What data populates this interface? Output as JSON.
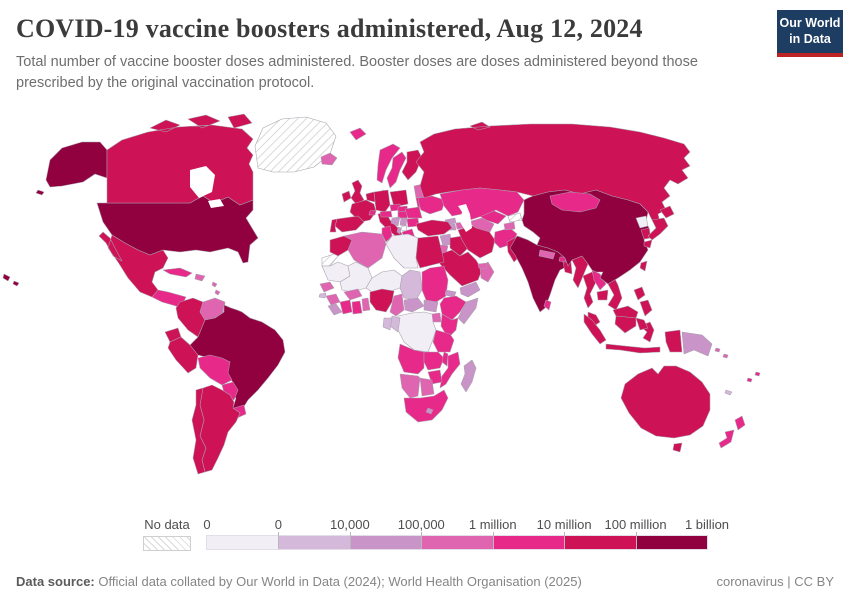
{
  "header": {
    "title": "COVID-19 vaccine boosters administered, Aug 12, 2024",
    "subtitle": "Total number of vaccine booster doses administered. Booster doses are doses administered beyond those prescribed by the original vaccination protocol.",
    "logo_line1": "Our World",
    "logo_line2": "in Data",
    "logo_bg": "#1d3d63",
    "logo_underline": "#bc2423"
  },
  "legend": {
    "nodata_label": "No data",
    "labels": [
      "0",
      "0",
      "10,000",
      "100,000",
      "1 million",
      "10 million",
      "100 million",
      "1 billion"
    ]
  },
  "footer": {
    "datasource_label": "Data source:",
    "datasource_text": " Official data collated by Our World in Data (2024); World Health Organisation (2025)",
    "license_text": "coronavirus | CC BY"
  },
  "chart_data": {
    "type": "choropleth",
    "title": "COVID-19 vaccine boosters administered",
    "date": "Aug 12, 2024",
    "metric": "Total vaccine booster doses administered",
    "legend_scale": "log-binned",
    "no_data_style": "diagonal-hatch",
    "bins": [
      {
        "range": "0",
        "color": "#f1eef6"
      },
      {
        "range": "0–10,000",
        "color": "#d4b9da"
      },
      {
        "range": "10,000–100,000",
        "color": "#c994c7"
      },
      {
        "range": "100,000–1 million",
        "color": "#df65b0"
      },
      {
        "range": "1 million–10 million",
        "color": "#e7298a"
      },
      {
        "range": "10 million–100 million",
        "color": "#ce1256"
      },
      {
        "range": "100 million–1 billion",
        "color": "#91003f"
      }
    ],
    "entities": [
      {
        "id": "united-states",
        "name": "United States",
        "bin": 6
      },
      {
        "id": "canada",
        "name": "Canada",
        "bin": 5
      },
      {
        "id": "greenland",
        "name": "Greenland",
        "bin": null
      },
      {
        "id": "iceland",
        "name": "Iceland",
        "bin": 3
      },
      {
        "id": "mexico",
        "name": "Mexico",
        "bin": 5
      },
      {
        "id": "central-america",
        "name": "Central America",
        "bin": 4
      },
      {
        "id": "cuba",
        "name": "Cuba",
        "bin": 4
      },
      {
        "id": "hispaniola",
        "name": "Dominican Republic",
        "bin": 3
      },
      {
        "id": "caribbean",
        "name": "Caribbean",
        "bin": 3
      },
      {
        "id": "colombia",
        "name": "Colombia",
        "bin": 5
      },
      {
        "id": "venezuela",
        "name": "Venezuela",
        "bin": 3
      },
      {
        "id": "guyana",
        "name": "Guyana",
        "bin": 1
      },
      {
        "id": "suriname",
        "name": "Suriname",
        "bin": 2
      },
      {
        "id": "french-guiana",
        "name": "French Guiana",
        "bin": 3
      },
      {
        "id": "ecuador",
        "name": "Ecuador",
        "bin": 5
      },
      {
        "id": "peru",
        "name": "Peru",
        "bin": 5
      },
      {
        "id": "brazil",
        "name": "Brazil",
        "bin": 6
      },
      {
        "id": "bolivia",
        "name": "Bolivia",
        "bin": 4
      },
      {
        "id": "paraguay",
        "name": "Paraguay",
        "bin": 4
      },
      {
        "id": "uruguay",
        "name": "Uruguay",
        "bin": 4
      },
      {
        "id": "argentina",
        "name": "Argentina",
        "bin": 5
      },
      {
        "id": "chile",
        "name": "Chile",
        "bin": 5
      },
      {
        "id": "ireland",
        "name": "Ireland",
        "bin": 5
      },
      {
        "id": "united-kingdom",
        "name": "United Kingdom",
        "bin": 5
      },
      {
        "id": "norway",
        "name": "Norway",
        "bin": 4
      },
      {
        "id": "svalbard",
        "name": "Svalbard",
        "bin": 4
      },
      {
        "id": "sweden",
        "name": "Sweden",
        "bin": 4
      },
      {
        "id": "finland",
        "name": "Finland",
        "bin": 5
      },
      {
        "id": "denmark",
        "name": "Denmark",
        "bin": 5
      },
      {
        "id": "baltics",
        "name": "Baltic states",
        "bin": 3
      },
      {
        "id": "belarus",
        "name": "Belarus",
        "bin": 4
      },
      {
        "id": "poland",
        "name": "Poland",
        "bin": 5
      },
      {
        "id": "germany",
        "name": "Germany",
        "bin": 5
      },
      {
        "id": "benelux",
        "name": "Benelux",
        "bin": 5
      },
      {
        "id": "france",
        "name": "France",
        "bin": 5
      },
      {
        "id": "spain",
        "name": "Spain",
        "bin": 5
      },
      {
        "id": "portugal",
        "name": "Portugal",
        "bin": 5
      },
      {
        "id": "italy",
        "name": "Italy",
        "bin": 5
      },
      {
        "id": "switzerland",
        "name": "Switzerland",
        "bin": 4
      },
      {
        "id": "czechia",
        "name": "Czechia",
        "bin": 4
      },
      {
        "id": "austria",
        "name": "Austria",
        "bin": 4
      },
      {
        "id": "slovakia",
        "name": "Slovakia",
        "bin": 4
      },
      {
        "id": "hungary",
        "name": "Hungary",
        "bin": 4
      },
      {
        "id": "croatia-bosnia",
        "name": "Croatia and Bosnia",
        "bin": 2
      },
      {
        "id": "serbia",
        "name": "Serbia",
        "bin": 2
      },
      {
        "id": "kosovo",
        "name": "Kosovo",
        "bin": null
      },
      {
        "id": "albania",
        "name": "Albania",
        "bin": 2
      },
      {
        "id": "bulgaria",
        "name": "Bulgaria",
        "bin": 4
      },
      {
        "id": "romania",
        "name": "Romania",
        "bin": 4
      },
      {
        "id": "greece",
        "name": "Greece",
        "bin": 4
      },
      {
        "id": "moldova",
        "name": "Moldova",
        "bin": 3
      },
      {
        "id": "ukraine",
        "name": "Ukraine",
        "bin": 4
      },
      {
        "id": "russia",
        "name": "Russia",
        "bin": 5
      },
      {
        "id": "georgia",
        "name": "Georgia",
        "bin": 2
      },
      {
        "id": "azerbaijan",
        "name": "Azerbaijan",
        "bin": 3
      },
      {
        "id": "armenia",
        "name": "Armenia",
        "bin": 2
      },
      {
        "id": "turkey",
        "name": "Turkey",
        "bin": 5
      },
      {
        "id": "cyprus",
        "name": "Cyprus",
        "bin": 4
      },
      {
        "id": "syria",
        "name": "Syria",
        "bin": 2
      },
      {
        "id": "israel",
        "name": "Israel",
        "bin": 4
      },
      {
        "id": "jordan",
        "name": "Jordan",
        "bin": 3
      },
      {
        "id": "iraq",
        "name": "Iraq",
        "bin": 5
      },
      {
        "id": "saudi-arabia",
        "name": "Saudi Arabia",
        "bin": 5
      },
      {
        "id": "yemen",
        "name": "Yemen",
        "bin": 2
      },
      {
        "id": "oman",
        "name": "Oman",
        "bin": 3
      },
      {
        "id": "uae",
        "name": "United Arab Emirates",
        "bin": 3
      },
      {
        "id": "iran",
        "name": "Iran",
        "bin": 5
      },
      {
        "id": "afghanistan",
        "name": "Afghanistan",
        "bin": 4
      },
      {
        "id": "turkmenistan",
        "name": "Turkmenistan",
        "bin": 3
      },
      {
        "id": "uzbekistan",
        "name": "Uzbekistan",
        "bin": 4
      },
      {
        "id": "kyrgyzstan",
        "name": "Kyrgyzstan",
        "bin": null
      },
      {
        "id": "tajikistan",
        "name": "Tajikistan",
        "bin": 3
      },
      {
        "id": "kazakhstan",
        "name": "Kazakhstan",
        "bin": 4
      },
      {
        "id": "pakistan",
        "name": "Pakistan",
        "bin": 5
      },
      {
        "id": "india",
        "name": "India",
        "bin": 6
      },
      {
        "id": "nepal",
        "name": "Nepal",
        "bin": 3
      },
      {
        "id": "bhutan",
        "name": "Bhutan",
        "bin": 4
      },
      {
        "id": "bangladesh",
        "name": "Bangladesh",
        "bin": 5
      },
      {
        "id": "sri-lanka",
        "name": "Sri Lanka",
        "bin": 4
      },
      {
        "id": "myanmar",
        "name": "Myanmar",
        "bin": 5
      },
      {
        "id": "thailand",
        "name": "Thailand",
        "bin": 5
      },
      {
        "id": "laos",
        "name": "Laos",
        "bin": 4
      },
      {
        "id": "cambodia",
        "name": "Cambodia",
        "bin": 5
      },
      {
        "id": "vietnam",
        "name": "Vietnam",
        "bin": 5
      },
      {
        "id": "malaysia",
        "name": "Malaysia",
        "bin": 5
      },
      {
        "id": "indonesia",
        "name": "Indonesia",
        "bin": 5
      },
      {
        "id": "papua-new-guinea",
        "name": "Papua New Guinea",
        "bin": 2
      },
      {
        "id": "philippines",
        "name": "Philippines",
        "bin": 5
      },
      {
        "id": "taiwan",
        "name": "Taiwan",
        "bin": 5
      },
      {
        "id": "china",
        "name": "China",
        "bin": 6
      },
      {
        "id": "mongolia",
        "name": "Mongolia",
        "bin": 4
      },
      {
        "id": "north-korea",
        "name": "North Korea",
        "bin": 0
      },
      {
        "id": "south-korea",
        "name": "South Korea",
        "bin": 5
      },
      {
        "id": "japan",
        "name": "Japan",
        "bin": 5
      },
      {
        "id": "australia",
        "name": "Australia",
        "bin": 5
      },
      {
        "id": "new-zealand",
        "name": "New Zealand",
        "bin": 4
      },
      {
        "id": "solomon-islands",
        "name": "Solomon Islands",
        "bin": 3
      },
      {
        "id": "fiji",
        "name": "Fiji",
        "bin": 4
      },
      {
        "id": "new-caledonia",
        "name": "New Caledonia",
        "bin": 1
      },
      {
        "id": "morocco",
        "name": "Morocco",
        "bin": 5
      },
      {
        "id": "western-sahara",
        "name": "Western Sahara",
        "bin": null
      },
      {
        "id": "algeria",
        "name": "Algeria",
        "bin": 3
      },
      {
        "id": "tunisia",
        "name": "Tunisia",
        "bin": 4
      },
      {
        "id": "libya",
        "name": "Libya",
        "bin": 0
      },
      {
        "id": "egypt",
        "name": "Egypt",
        "bin": 5
      },
      {
        "id": "mauritania",
        "name": "Mauritania",
        "bin": 0
      },
      {
        "id": "mali",
        "name": "Mali",
        "bin": 0
      },
      {
        "id": "niger",
        "name": "Niger",
        "bin": 0
      },
      {
        "id": "chad",
        "name": "Chad",
        "bin": 1
      },
      {
        "id": "sudan",
        "name": "Sudan",
        "bin": 4
      },
      {
        "id": "eritrea",
        "name": "Eritrea",
        "bin": 2
      },
      {
        "id": "ethiopia",
        "name": "Ethiopia",
        "bin": 4
      },
      {
        "id": "somalia",
        "name": "Somalia",
        "bin": 2
      },
      {
        "id": "senegal",
        "name": "Senegal",
        "bin": 3
      },
      {
        "id": "guinea-bissau",
        "name": "Guinea-Bissau",
        "bin": 1
      },
      {
        "id": "guinea",
        "name": "Guinea",
        "bin": 3
      },
      {
        "id": "sierra-leone-liberia",
        "name": "Sierra Leone and Liberia",
        "bin": 2
      },
      {
        "id": "ivory-coast",
        "name": "Cote d'Ivoire",
        "bin": 4
      },
      {
        "id": "ghana",
        "name": "Ghana",
        "bin": 4
      },
      {
        "id": "togo-benin",
        "name": "Togo and Benin",
        "bin": 3
      },
      {
        "id": "burkina-faso",
        "name": "Burkina Faso",
        "bin": 3
      },
      {
        "id": "nigeria",
        "name": "Nigeria",
        "bin": 5
      },
      {
        "id": "cameroon",
        "name": "Cameroon",
        "bin": 3
      },
      {
        "id": "central-african-republic",
        "name": "Central African Republic",
        "bin": 2
      },
      {
        "id": "south-sudan",
        "name": "South Sudan",
        "bin": 2
      },
      {
        "id": "uganda",
        "name": "Uganda",
        "bin": 3
      },
      {
        "id": "kenya",
        "name": "Kenya",
        "bin": 4
      },
      {
        "id": "dr-congo",
        "name": "Democratic Republic of Congo",
        "bin": 0
      },
      {
        "id": "congo",
        "name": "Congo",
        "bin": 1
      },
      {
        "id": "gabon",
        "name": "Gabon",
        "bin": 1
      },
      {
        "id": "tanzania",
        "name": "Tanzania",
        "bin": 4
      },
      {
        "id": "angola",
        "name": "Angola",
        "bin": 4
      },
      {
        "id": "zambia",
        "name": "Zambia",
        "bin": 4
      },
      {
        "id": "malawi",
        "name": "Malawi",
        "bin": 4
      },
      {
        "id": "mozambique",
        "name": "Mozambique",
        "bin": 4
      },
      {
        "id": "zimbabwe",
        "name": "Zimbabwe",
        "bin": 4
      },
      {
        "id": "botswana",
        "name": "Botswana",
        "bin": 3
      },
      {
        "id": "namibia",
        "name": "Namibia",
        "bin": 3
      },
      {
        "id": "south-africa",
        "name": "South Africa",
        "bin": 4
      },
      {
        "id": "lesotho",
        "name": "Lesotho",
        "bin": 2
      },
      {
        "id": "madagascar",
        "name": "Madagascar",
        "bin": 2
      }
    ]
  }
}
